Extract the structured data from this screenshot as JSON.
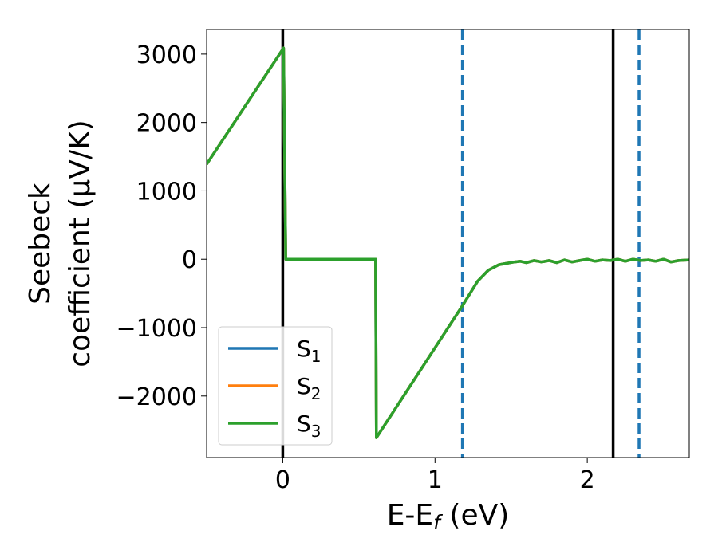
{
  "chart_data": {
    "type": "line",
    "xlabel_main": "E-E",
    "xlabel_sub": "f",
    "xlabel_tail": " (eV)",
    "ylabel_line1": "Seebeck",
    "ylabel_line2": "coefficient  (μV/K)",
    "xlim": [
      -0.5,
      2.67
    ],
    "ylim": [
      -2900,
      3360
    ],
    "xticks": [
      0,
      1,
      2
    ],
    "xtick_labels": [
      "0",
      "1",
      "2"
    ],
    "yticks": [
      3000,
      2000,
      1000,
      0,
      -1000,
      -2000
    ],
    "ytick_labels": [
      "3000",
      "2000",
      "1000",
      "0",
      "−1000",
      "−2000"
    ],
    "vlines_solid": [
      0.0,
      2.17
    ],
    "vlines_dashed": [
      1.18,
      2.34
    ],
    "legend_position": "lower-left",
    "series": [
      {
        "name": "S",
        "subscript": "1",
        "color": "#1f77b4",
        "x": [
          -0.5,
          0.0,
          0.005,
          0.02,
          0.61,
          0.615,
          1.18,
          1.28,
          1.35,
          1.42,
          1.47,
          1.52,
          1.56,
          1.6,
          1.65,
          1.7,
          1.75,
          1.8,
          1.85,
          1.9,
          1.95,
          2.0,
          2.05,
          2.1,
          2.15,
          2.2,
          2.25,
          2.3,
          2.35,
          2.4,
          2.45,
          2.5,
          2.55,
          2.6,
          2.67
        ],
        "y": [
          1390,
          3070,
          3090,
          0,
          0,
          -2610,
          -680,
          -320,
          -160,
          -80,
          -60,
          -40,
          -30,
          -50,
          -20,
          -40,
          -20,
          -50,
          -10,
          -40,
          -20,
          0,
          -30,
          -10,
          -20,
          0,
          -30,
          0,
          -20,
          -10,
          -30,
          0,
          -40,
          -20,
          -10
        ]
      },
      {
        "name": "S",
        "subscript": "2",
        "color": "#ff7f0e",
        "x": [
          -0.5,
          0.0,
          0.005,
          0.02,
          0.61,
          0.615,
          1.18,
          1.28,
          1.35,
          1.42,
          1.47,
          1.52,
          1.56,
          1.6,
          1.65,
          1.7,
          1.75,
          1.8,
          1.85,
          1.9,
          1.95,
          2.0,
          2.05,
          2.1,
          2.15,
          2.2,
          2.25,
          2.3,
          2.35,
          2.4,
          2.45,
          2.5,
          2.55,
          2.6,
          2.67
        ],
        "y": [
          1390,
          3070,
          3090,
          0,
          0,
          -2610,
          -680,
          -320,
          -160,
          -80,
          -60,
          -40,
          -30,
          -50,
          -20,
          -40,
          -20,
          -50,
          -10,
          -40,
          -20,
          0,
          -30,
          -10,
          -20,
          0,
          -30,
          0,
          -20,
          -10,
          -30,
          0,
          -40,
          -20,
          -10
        ]
      },
      {
        "name": "S",
        "subscript": "3",
        "color": "#2ca02c",
        "x": [
          -0.5,
          0.0,
          0.005,
          0.02,
          0.61,
          0.615,
          1.18,
          1.28,
          1.35,
          1.42,
          1.47,
          1.52,
          1.56,
          1.6,
          1.65,
          1.7,
          1.75,
          1.8,
          1.85,
          1.9,
          1.95,
          2.0,
          2.05,
          2.1,
          2.15,
          2.2,
          2.25,
          2.3,
          2.35,
          2.4,
          2.45,
          2.5,
          2.55,
          2.6,
          2.67
        ],
        "y": [
          1390,
          3070,
          3090,
          0,
          0,
          -2610,
          -680,
          -320,
          -160,
          -80,
          -60,
          -40,
          -30,
          -50,
          -20,
          -40,
          -20,
          -50,
          -10,
          -40,
          -20,
          0,
          -30,
          -10,
          -20,
          0,
          -30,
          0,
          -20,
          -10,
          -30,
          0,
          -40,
          -20,
          -10
        ]
      }
    ]
  }
}
